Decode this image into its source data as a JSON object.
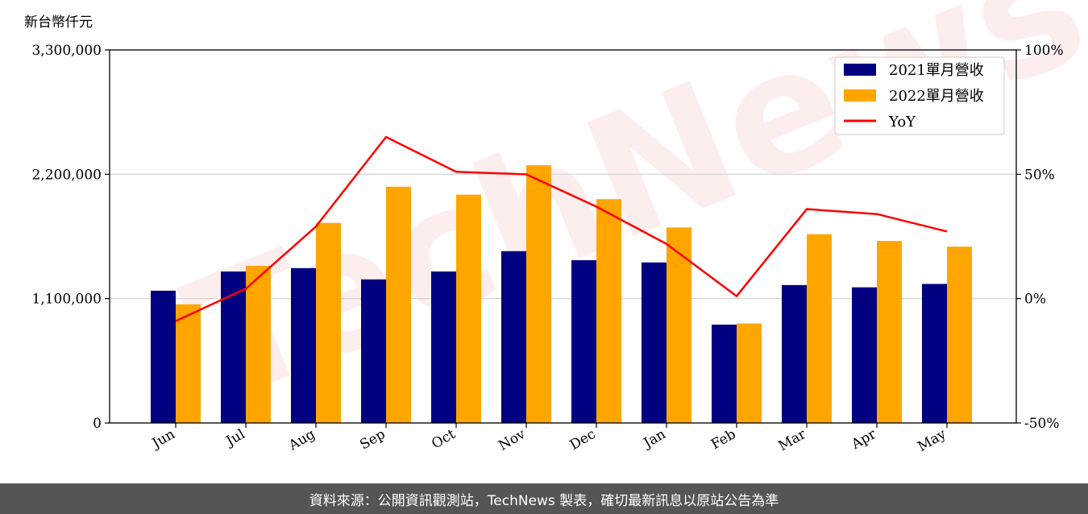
{
  "unit_label": "新台幣仟元",
  "watermark": "TechNews",
  "footer": "資料來源：公開資訊觀測站，TechNews 製表，確切最新訊息以原站公告為準",
  "colors": {
    "series_2021": "#000080",
    "series_2022": "#ffa500",
    "yoy": "#ff0000",
    "grid": "#d0d0d0",
    "footer_bg": "#555555"
  },
  "chart_data": {
    "type": "bar",
    "categories": [
      "Jun",
      "Jul",
      "Aug",
      "Sep",
      "Oct",
      "Nov",
      "Dec",
      "Jan",
      "Feb",
      "Mar",
      "Apr",
      "May"
    ],
    "series": [
      {
        "name": "2021單月營收",
        "axis": "left",
        "values": [
          1170000,
          1340000,
          1370000,
          1270000,
          1340000,
          1520000,
          1440000,
          1420000,
          870000,
          1220000,
          1200000,
          1230000
        ]
      },
      {
        "name": "2022單月營收",
        "axis": "left",
        "values": [
          1050000,
          1390000,
          1770000,
          2090000,
          2020000,
          2280000,
          1980000,
          1730000,
          880000,
          1670000,
          1610000,
          1560000
        ]
      },
      {
        "name": "YoY",
        "axis": "right",
        "type": "line",
        "values": [
          -9,
          4,
          29,
          65,
          51,
          50,
          37,
          22,
          1,
          36,
          34,
          27
        ]
      }
    ],
    "ylim_left": [
      0,
      3300000
    ],
    "yticks_left": [
      "0",
      "1,100,000",
      "2,200,000",
      "3,300,000"
    ],
    "ylim_right": [
      -50,
      100
    ],
    "yticks_right": [
      "-50%",
      "0%",
      "50%",
      "100%"
    ],
    "legend_position": "upper-right",
    "grid": "horizontal"
  }
}
